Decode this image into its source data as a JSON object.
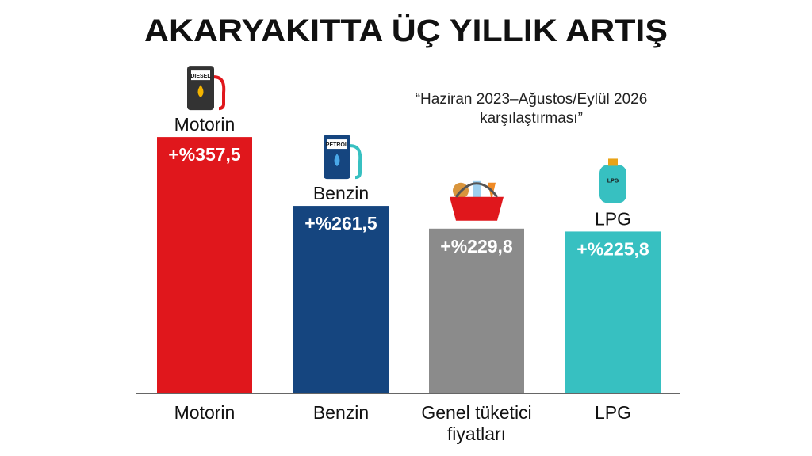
{
  "chart_data": {
    "type": "bar",
    "title": "AKARYAKITTA ÜÇ YILLIK ARTIŞ",
    "subtitle": "“Haziran 2023–Ağustos/Eylül 2026 karşılaştırması”",
    "categories": [
      "Motorin",
      "Benzin",
      "Genel tüketici fiyatları",
      "LPG"
    ],
    "values": [
      357.5,
      261.5,
      229.8,
      225.8
    ],
    "value_labels": [
      "+%357,5",
      "+%261,5",
      "+%229,8",
      "+%225,8"
    ],
    "bar_labels": [
      "Motorin",
      "Benzin",
      null,
      "LPG"
    ],
    "icon_labels": [
      "DIESEL",
      "PETROL",
      null,
      "LPG"
    ],
    "colors": [
      "#e0171c",
      "#15457f",
      "#8b8b8b",
      "#37c0c1"
    ]
  }
}
